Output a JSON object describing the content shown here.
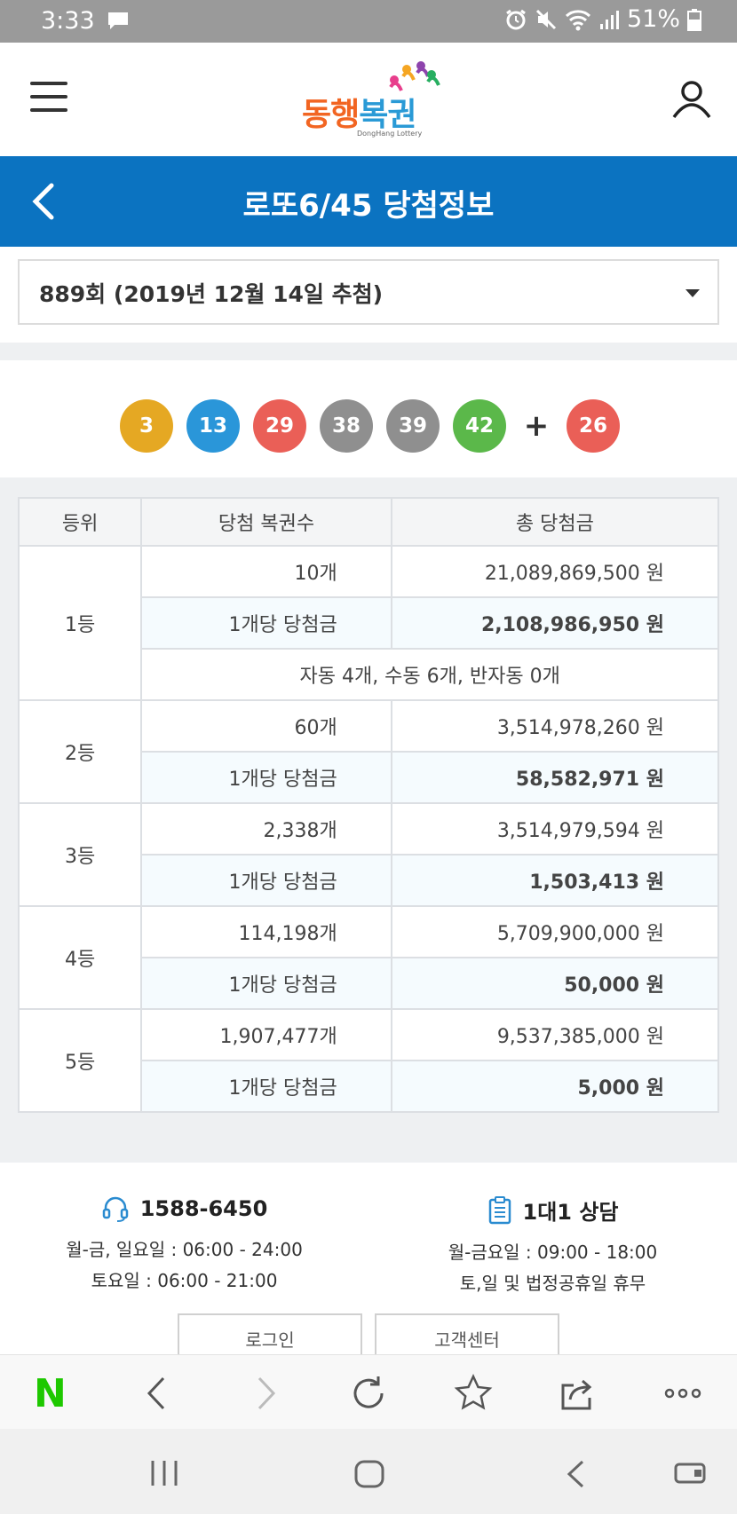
{
  "status_bar": {
    "time": "3:33",
    "battery": "51%"
  },
  "header": {
    "logo_text_1": "동행",
    "logo_text_2": "복권",
    "logo_sub": "DongHang Lottery"
  },
  "title_bar": {
    "title": "로또6/45 당첨정보"
  },
  "round_select": {
    "value": "889회 (2019년 12월 14일 추첨)"
  },
  "winning_numbers": {
    "numbers": [
      {
        "n": "3",
        "color": "#e5a823"
      },
      {
        "n": "13",
        "color": "#2a96d9"
      },
      {
        "n": "29",
        "color": "#ea5f57"
      },
      {
        "n": "38",
        "color": "#8f8f8f"
      },
      {
        "n": "39",
        "color": "#8f8f8f"
      },
      {
        "n": "42",
        "color": "#5bb84a"
      }
    ],
    "plus": "+",
    "bonus": {
      "n": "26",
      "color": "#ea5f57"
    }
  },
  "table": {
    "headers": [
      "등위",
      "당첨 복권수",
      "총 당첨금"
    ],
    "per_label": "1개당 당첨금",
    "rows": [
      {
        "rank": "1등",
        "count": "10개",
        "total": "21,089,869,500 원",
        "per": "2,108,986,950 원",
        "method": "자동 4개, 수동 6개, 반자동 0개"
      },
      {
        "rank": "2등",
        "count": "60개",
        "total": "3,514,978,260 원",
        "per": "58,582,971 원"
      },
      {
        "rank": "3등",
        "count": "2,338개",
        "total": "3,514,979,594 원",
        "per": "1,503,413 원"
      },
      {
        "rank": "4등",
        "count": "114,198개",
        "total": "5,709,900,000 원",
        "per": "50,000 원"
      },
      {
        "rank": "5등",
        "count": "1,907,477개",
        "total": "9,537,385,000 원",
        "per": "5,000 원"
      }
    ]
  },
  "footer": {
    "phone": {
      "label": "1588-6450",
      "line1": "월-금, 일요일 : 06:00 - 24:00",
      "line2": "토요일 : 06:00 - 21:00"
    },
    "consult": {
      "label": "1대1 상담",
      "line1": "월-금요일 : 09:00 - 18:00",
      "line2": "토,일 및 법정공휴일 휴무"
    },
    "buttons": [
      "로그인",
      "고객센터"
    ]
  },
  "browser": {
    "naver_label": "N"
  }
}
